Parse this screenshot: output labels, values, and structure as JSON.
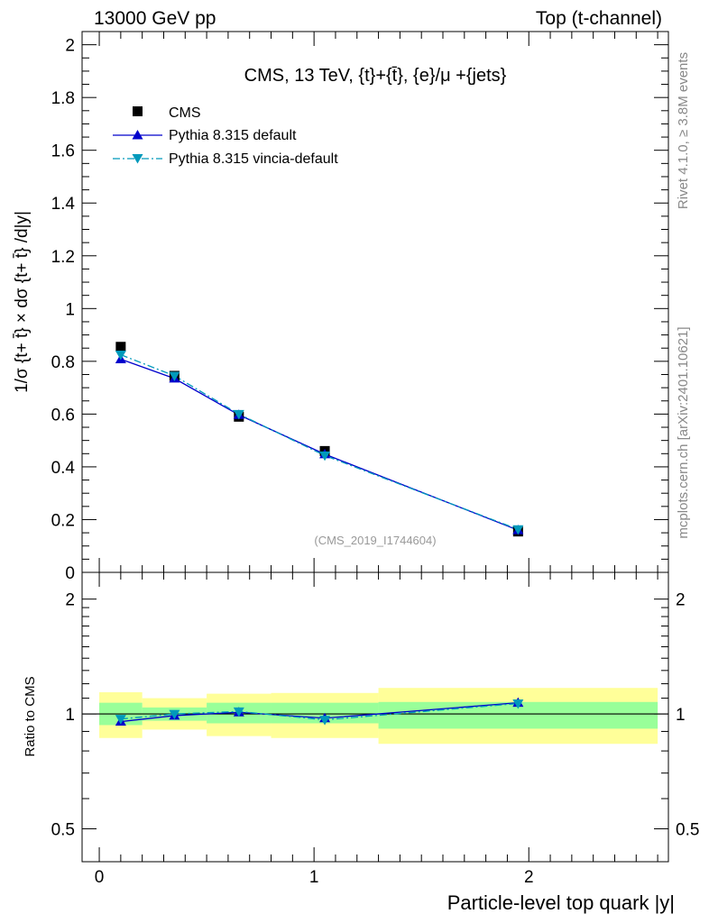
{
  "header": {
    "left": "13000 GeV pp",
    "right": "Top (t-channel)"
  },
  "side_labels": {
    "rivet": "Rivet 4.1.0, ≥ 3.8M events",
    "mcplots": "mcplots.cern.ch [arXiv:2401.10621]"
  },
  "chart_data": [
    {
      "type": "scatter",
      "panel": "main",
      "title": "CMS, 13 TeV, {t}+{t̄}, {e}/μ +{jets}",
      "ylabel": "1/σ {t+ t̄} × dσ {t+ t̄} /d|y|",
      "xlabel": "Particle-level top quark |y|",
      "xlim": [
        -0.08,
        2.65
      ],
      "ylim": [
        0,
        2.05
      ],
      "yticks": [
        0,
        0.2,
        0.4,
        0.6,
        0.8,
        1,
        1.2,
        1.4,
        1.6,
        1.8,
        2
      ],
      "ytick_labels": [
        "0",
        "0.2",
        "0.4",
        "0.6",
        "0.8",
        "1",
        "1.2",
        "1.4",
        "1.6",
        "1.8",
        "2"
      ],
      "analysis_id": "(CMS_2019_I1744604)",
      "x": [
        0.1,
        0.35,
        0.65,
        1.05,
        1.95
      ],
      "series": [
        {
          "name": "CMS",
          "values": [
            0.855,
            0.745,
            0.59,
            0.46,
            0.155
          ],
          "color": "#000000",
          "marker": "square"
        },
        {
          "name": "Pythia 8.315 default",
          "values": [
            0.808,
            0.735,
            0.597,
            0.448,
            0.16
          ],
          "color": "#0000cc",
          "marker": "triangle-up",
          "line": "solid"
        },
        {
          "name": "Pythia 8.315 vincia-default",
          "values": [
            0.825,
            0.745,
            0.6,
            0.443,
            0.163
          ],
          "color": "#0099bb",
          "marker": "triangle-down",
          "line": "dashdot"
        }
      ],
      "legend": [
        "CMS",
        "Pythia 8.315 default",
        "Pythia 8.315 vincia-default"
      ]
    },
    {
      "type": "line",
      "panel": "ratio",
      "ylabel": "Ratio to CMS",
      "xlabel": "Particle-level top quark |y|",
      "xlim": [
        -0.08,
        2.65
      ],
      "ylim": [
        0.41,
        2.35
      ],
      "yscale": "log",
      "yticks": [
        0.5,
        1,
        2
      ],
      "ytick_labels": [
        "0.5",
        "1",
        "2"
      ],
      "xticks": [
        0,
        1,
        2
      ],
      "xtick_labels": [
        "0",
        "1",
        "2"
      ],
      "x": [
        0.1,
        0.35,
        0.65,
        1.05,
        1.95
      ],
      "bins": [
        [
          0,
          0.2
        ],
        [
          0.2,
          0.5
        ],
        [
          0.5,
          0.8
        ],
        [
          0.8,
          1.3
        ],
        [
          1.3,
          2.6
        ]
      ],
      "band_stat_low": [
        0.935,
        0.96,
        0.945,
        0.945,
        0.915
      ],
      "band_stat_high": [
        1.07,
        1.04,
        1.07,
        1.07,
        1.075
      ],
      "band_tot_low": [
        0.865,
        0.91,
        0.875,
        0.865,
        0.835
      ],
      "band_tot_high": [
        1.14,
        1.1,
        1.13,
        1.135,
        1.17
      ],
      "series": [
        {
          "name": "Pythia 8.315 default",
          "values": [
            0.955,
            0.99,
            1.01,
            0.975,
            1.07
          ]
        },
        {
          "name": "Pythia 8.315 vincia-default",
          "values": [
            0.97,
            1.0,
            1.015,
            0.965,
            1.065
          ]
        }
      ]
    }
  ]
}
